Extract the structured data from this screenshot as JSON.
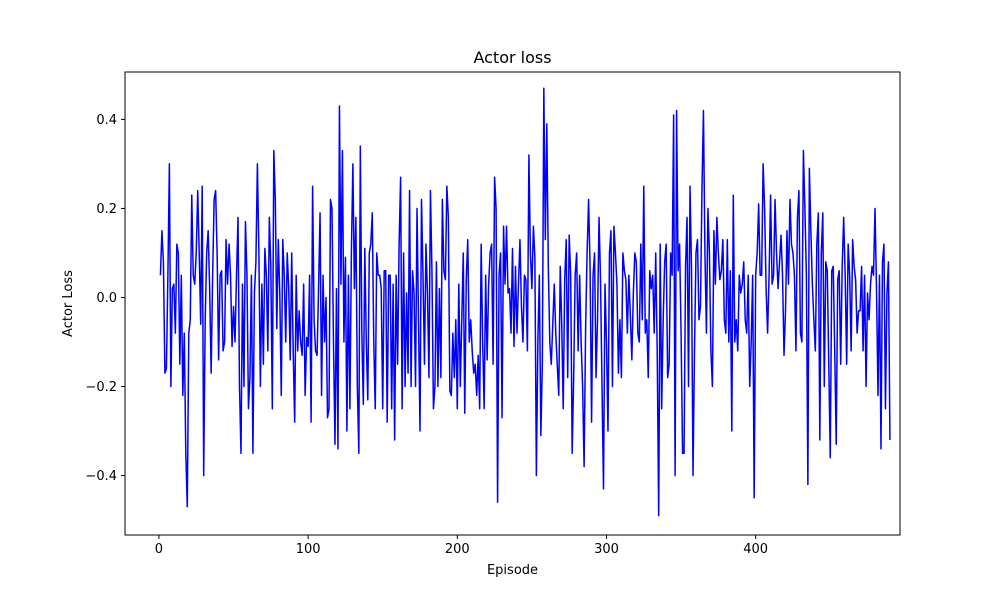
{
  "chart_data": {
    "type": "line",
    "title": "Actor loss",
    "xlabel": "Episode",
    "ylabel": "Actor Loss",
    "xlim": [
      -22.75,
      496.75
    ],
    "ylim": [
      -0.5335,
      0.5065
    ],
    "grid": false,
    "x_ticks": [
      0,
      100,
      200,
      300,
      400
    ],
    "x_tick_labels": [
      "0",
      "100",
      "200",
      "300",
      "400"
    ],
    "y_ticks": [
      -0.4,
      -0.2,
      0.0,
      0.2,
      0.4
    ],
    "y_tick_labels": [
      "−0.4",
      "−0.2",
      "0.0",
      "0.2",
      "0.4"
    ],
    "series": [
      {
        "color": "#0000ff",
        "x_start": 1,
        "x_step": 1,
        "values": [
          0.05,
          0.15,
          0.08,
          -0.17,
          -0.16,
          0.05,
          0.3,
          -0.2,
          0.02,
          0.03,
          -0.08,
          0.12,
          0.1,
          -0.15,
          0.05,
          -0.22,
          -0.08,
          -0.35,
          -0.47,
          -0.08,
          -0.05,
          0.23,
          0.05,
          0.03,
          0.1,
          0.24,
          0.1,
          -0.06,
          0.25,
          -0.4,
          -0.05,
          0.1,
          0.15,
          0.02,
          -0.17,
          0.05,
          0.22,
          0.24,
          0.1,
          -0.14,
          0.05,
          0.06,
          -0.12,
          -0.1,
          0.13,
          0.03,
          0.12,
          0.05,
          -0.11,
          -0.02,
          -0.1,
          0.05,
          0.18,
          -0.2,
          -0.35,
          0.03,
          -0.2,
          0.17,
          0.05,
          -0.25,
          -0.18,
          0.05,
          -0.35,
          0.01,
          0.08,
          0.3,
          0.1,
          -0.2,
          0.03,
          -0.15,
          0.11,
          0.05,
          -0.12,
          0.18,
          0.07,
          -0.25,
          0.33,
          0.22,
          -0.07,
          0.13,
          0.01,
          -0.22,
          0.13,
          0.05,
          -0.1,
          0.1,
          0.02,
          -0.14,
          0.1,
          -0.12,
          -0.28,
          0.05,
          -0.12,
          -0.03,
          -0.1,
          -0.13,
          0.03,
          -0.22,
          -0.09,
          -0.11,
          0.05,
          -0.28,
          0.25,
          -0.05,
          -0.12,
          -0.13,
          0.02,
          0.19,
          -0.22,
          0.05,
          -0.1,
          0.0,
          -0.27,
          -0.25,
          0.22,
          0.2,
          -0.1,
          -0.33,
          0.02,
          -0.34,
          0.43,
          0.03,
          0.33,
          -0.1,
          0.09,
          -0.3,
          0.05,
          -0.25,
          0.1,
          0.3,
          0.02,
          0.18,
          -0.2,
          -0.35,
          0.34,
          -0.08,
          -0.24,
          0.11,
          -0.1,
          -0.23,
          0.1,
          0.12,
          0.19,
          -0.1,
          -0.25,
          0.1,
          0.05,
          0.05,
          0.02,
          -0.25,
          0.06,
          0.06,
          -0.28,
          0.05,
          0.05,
          -0.25,
          0.03,
          -0.32,
          0.05,
          -0.15,
          0.12,
          0.27,
          -0.25,
          0.1,
          -0.2,
          0.01,
          -0.17,
          0.24,
          -0.2,
          0.06,
          0.01,
          -0.2,
          0.2,
          -0.05,
          -0.3,
          0.22,
          0.05,
          -0.15,
          0.12,
          0.01,
          -0.18,
          0.24,
          0.06,
          -0.25,
          -0.2,
          0.08,
          -0.2,
          0.02,
          -0.18,
          0.22,
          0.06,
          0.04,
          0.25,
          0.18,
          -0.21,
          -0.22,
          -0.08,
          -0.18,
          -0.05,
          -0.25,
          0.03,
          -0.2,
          -0.05,
          0.1,
          -0.26,
          0.04,
          0.13,
          -0.1,
          -0.05,
          -0.12,
          -0.17,
          -0.15,
          -0.22,
          -0.13,
          -0.25,
          0.12,
          -0.1,
          -0.25,
          0.05,
          -0.14,
          0.03,
          0.1,
          0.12,
          -0.15,
          0.27,
          0.2,
          -0.46,
          0.05,
          0.1,
          -0.27,
          0.16,
          0.03,
          0.16,
          0.01,
          0.02,
          -0.08,
          0.11,
          -0.11,
          0.07,
          -0.08,
          0.03,
          0.13,
          -0.02,
          -0.1,
          0.05,
          0.04,
          -0.12,
          0.32,
          0.1,
          0.02,
          0.16,
          0.09,
          -0.4,
          -0.1,
          0.05,
          -0.31,
          -0.15,
          0.47,
          0.13,
          0.39,
          0.07,
          -0.1,
          -0.15,
          -0.06,
          0.03,
          -0.08,
          -0.15,
          -0.22,
          0.07,
          -0.06,
          -0.25,
          0.04,
          0.13,
          -0.18,
          0.14,
          0.05,
          -0.35,
          -0.18,
          0.05,
          0.1,
          -0.12,
          0.05,
          -0.1,
          -0.2,
          -0.38,
          -0.07,
          0.1,
          0.22,
          0.07,
          -0.28,
          0.05,
          0.1,
          -0.18,
          -0.05,
          0.18,
          0.04,
          -0.2,
          -0.43,
          0.03,
          -0.1,
          -0.3,
          0.1,
          0.15,
          -0.2,
          0.16,
          0.1,
          0.03,
          -0.17,
          -0.05,
          -0.18,
          0.1,
          0.06,
          0.04,
          -0.08,
          0.05,
          -0.04,
          -0.14,
          0.01,
          0.1,
          0.08,
          -0.08,
          -0.1,
          0.12,
          -0.05,
          0.25,
          -0.08,
          -0.05,
          -0.18,
          0.06,
          0.02,
          0.05,
          -0.08,
          0.1,
          -0.12,
          -0.49,
          0.12,
          -0.25,
          -0.05,
          0.08,
          0.12,
          -0.18,
          -0.15,
          0.1,
          0.05,
          0.41,
          -0.4,
          0.42,
          0.06,
          0.12,
          -0.08,
          -0.35,
          -0.35,
          0.07,
          0.18,
          -0.2,
          0.25,
          0.06,
          -0.4,
          -0.12,
          0.1,
          0.13,
          -0.05,
          -0.02,
          0.24,
          0.42,
          0.1,
          -0.08,
          0.2,
          0.1,
          -0.12,
          -0.2,
          0.15,
          0.03,
          0.18,
          0.1,
          0.04,
          0.06,
          0.13,
          -0.05,
          -0.08,
          0.13,
          -0.1,
          0.06,
          -0.3,
          0.23,
          -0.1,
          -0.05,
          -0.12,
          0.05,
          0.01,
          0.03,
          0.08,
          -0.05,
          -0.08,
          0.05,
          -0.2,
          -0.1,
          0.05,
          -0.45,
          0.05,
          0.1,
          0.21,
          0.05,
          0.05,
          0.3,
          0.2,
          0.02,
          -0.08,
          0.05,
          0.23,
          0.03,
          0.05,
          0.22,
          0.1,
          0.02,
          0.08,
          0.14,
          0.05,
          -0.13,
          -0.03,
          0.15,
          0.03,
          0.22,
          0.12,
          0.1,
          0.05,
          -0.12,
          0.18,
          0.24,
          -0.08,
          -0.1,
          0.33,
          0.2,
          0.05,
          -0.42,
          0.29,
          0.15,
          0.03,
          -0.05,
          -0.12,
          0.12,
          0.19,
          -0.32,
          0.1,
          0.19,
          -0.2,
          0.08,
          0.06,
          -0.15,
          -0.36,
          0.06,
          0.07,
          -0.12,
          -0.33,
          0.04,
          0.06,
          -0.15,
          0.07,
          0.18,
          0.05,
          -0.15,
          0.12,
          0.05,
          -0.12,
          0.13,
          0.07,
          0.04,
          -0.08,
          -0.03,
          -0.03,
          0.07,
          -0.12,
          0.05,
          -0.2,
          0.01,
          -0.05,
          0.03,
          0.07,
          0.05,
          0.2,
          0.02,
          -0.22,
          0.05,
          -0.34,
          0.08,
          0.12,
          -0.25,
          0.01,
          0.08,
          -0.32
        ]
      }
    ]
  }
}
